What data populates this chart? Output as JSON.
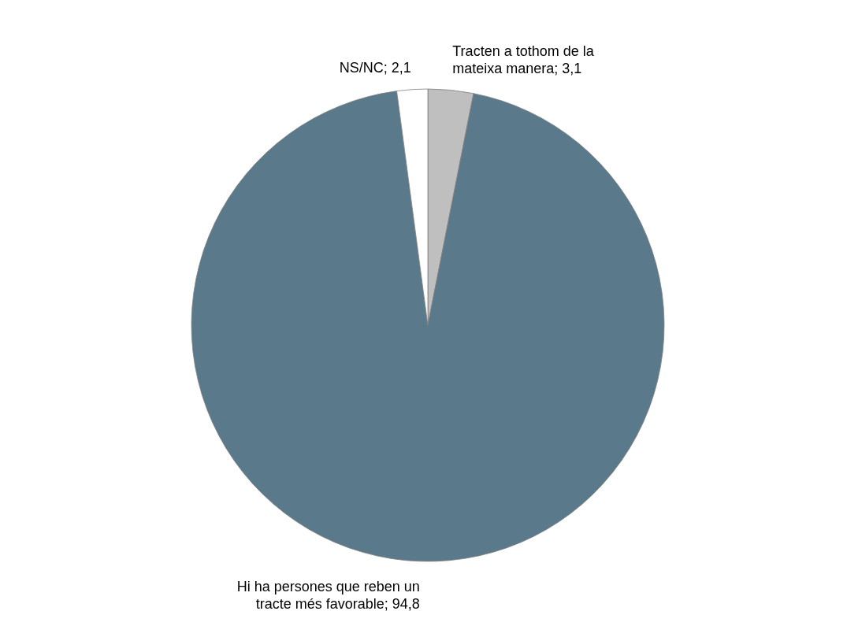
{
  "chart_data": {
    "type": "pie",
    "categories": [
      "Tracten a tothom de la mateixa manera",
      "Hi ha persones que reben un tracte més favorable",
      "NS/NC"
    ],
    "values": [
      3.1,
      94.8,
      2.1
    ],
    "value_labels": [
      "3,1",
      "94,8",
      "2,1"
    ],
    "colors": [
      "#bfbfbf",
      "#5a7a8c",
      "#ffffff"
    ],
    "legend": false
  }
}
